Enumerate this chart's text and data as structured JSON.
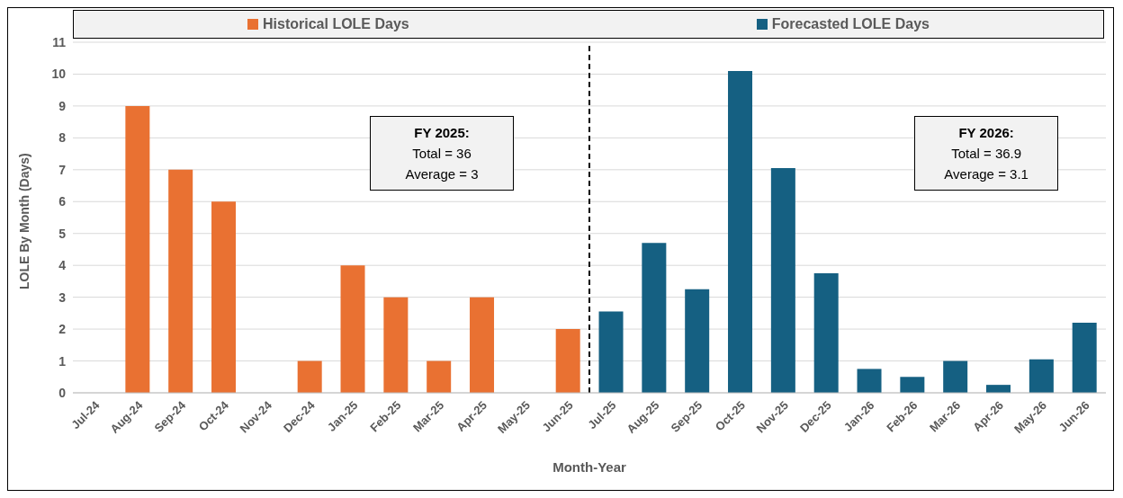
{
  "chart_data": {
    "type": "bar",
    "categories": [
      "Jul-24",
      "Aug-24",
      "Sep-24",
      "Oct-24",
      "Nov-24",
      "Dec-24",
      "Jan-25",
      "Feb-25",
      "Mar-25",
      "Apr-25",
      "May-25",
      "Jun-25",
      "Jul-25",
      "Aug-25",
      "Sep-25",
      "Oct-25",
      "Nov-25",
      "Dec-25",
      "Jan-26",
      "Feb-26",
      "Mar-26",
      "Apr-26",
      "May-26",
      "Jun-26"
    ],
    "series": [
      {
        "name": "Historical LOLE Days",
        "color": "#e97132",
        "values": [
          0,
          9,
          7,
          6,
          0,
          1,
          4,
          3,
          1,
          3,
          0,
          2,
          null,
          null,
          null,
          null,
          null,
          null,
          null,
          null,
          null,
          null,
          null,
          null
        ]
      },
      {
        "name": "Forecasted LOLE Days",
        "color": "#156082",
        "values": [
          null,
          null,
          null,
          null,
          null,
          null,
          null,
          null,
          null,
          null,
          null,
          null,
          2.55,
          4.7,
          3.25,
          10.1,
          7.05,
          3.75,
          0.75,
          0.5,
          1.0,
          0.25,
          1.05,
          2.2
        ]
      }
    ],
    "xlabel": "Month-Year",
    "ylabel": "LOLE By Month (Days)",
    "ylim": [
      0,
      11
    ],
    "yticks": [
      0,
      1,
      2,
      3,
      4,
      5,
      6,
      7,
      8,
      9,
      10,
      11
    ],
    "grid": "y",
    "legend": "top",
    "ref_lines": [
      {
        "axis": "x",
        "value": "Jul-25",
        "color": "#000000",
        "line_style": "dashed"
      }
    ],
    "annotations": [
      "FY 2025:\nTotal =  36\nAverage = 3",
      "FY 2026:\nTotal =  36.9\nAverage = 3.1"
    ]
  }
}
